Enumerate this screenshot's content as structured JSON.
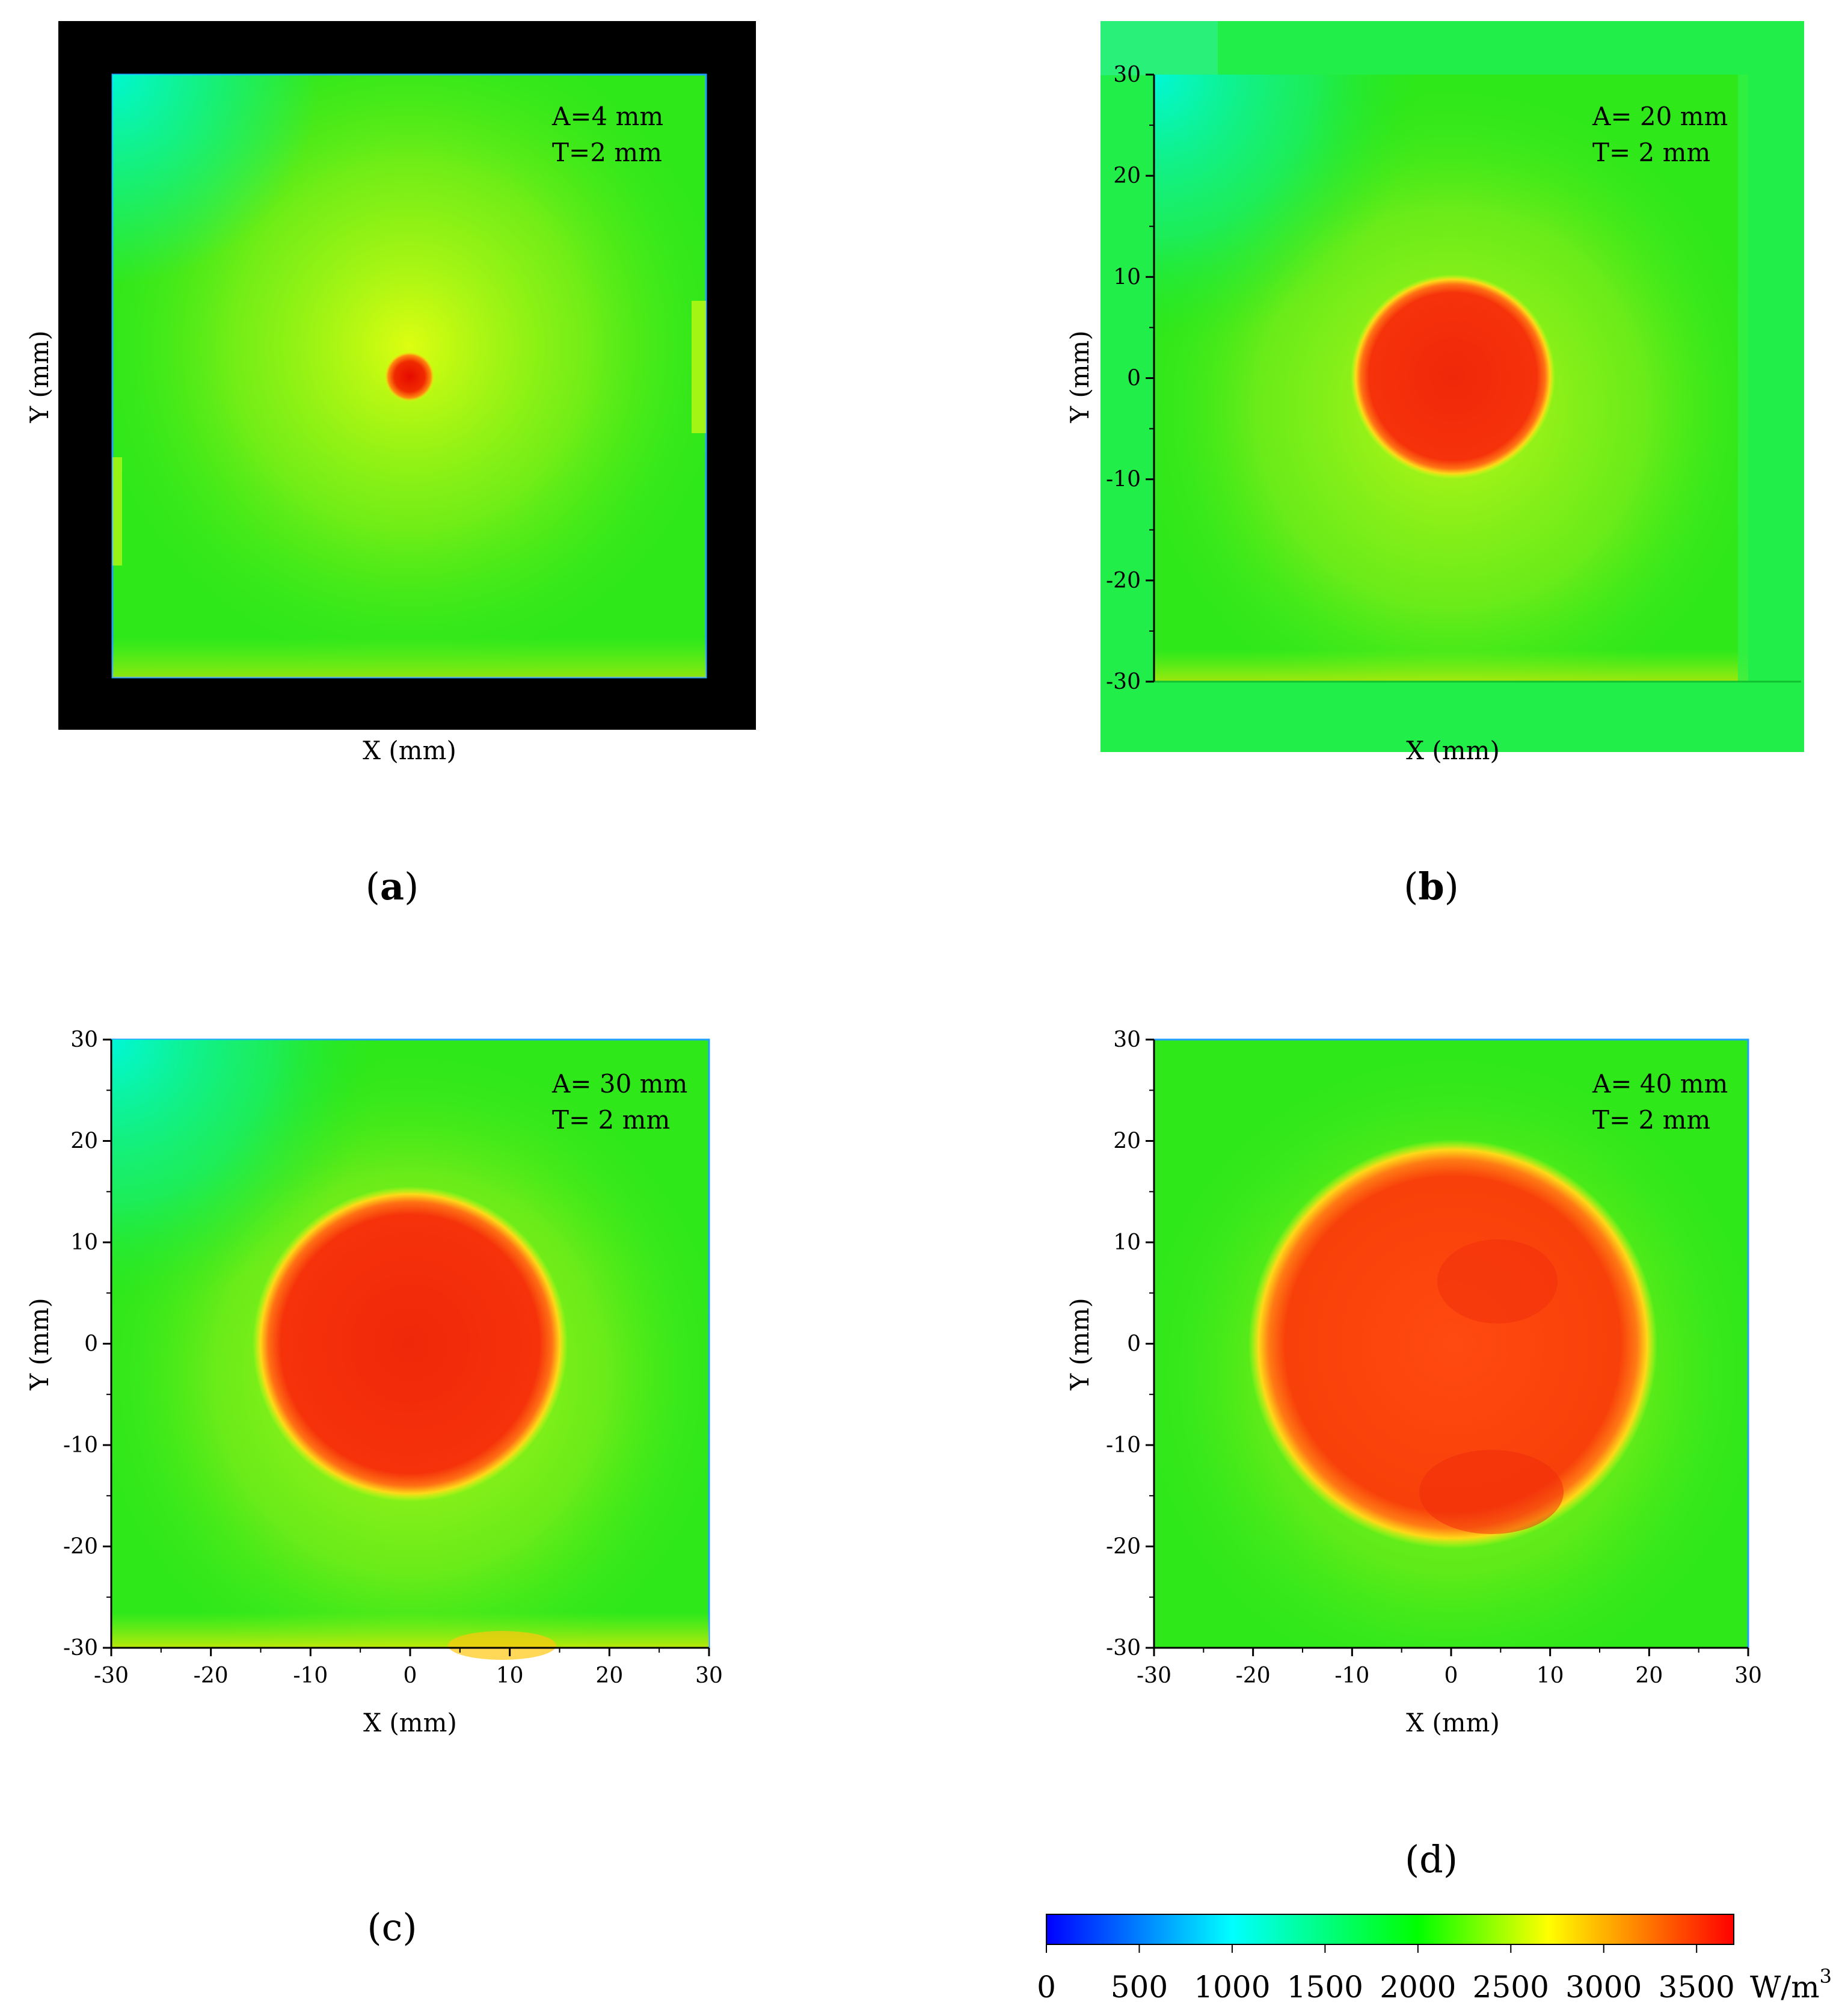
{
  "chart_data": [
    {
      "type": "heatmap",
      "panel": "a",
      "annotation": [
        "A=4 mm",
        "T=2 mm"
      ],
      "xlabel": "X (mm)",
      "ylabel": "Y (mm)",
      "xlim": [
        -30,
        30
      ],
      "ylim": [
        -30,
        30
      ],
      "xticks": [],
      "yticks": [],
      "hotspot_diameter_mm": 4,
      "frame": "black"
    },
    {
      "type": "heatmap",
      "panel": "b",
      "annotation": [
        "A= 20 mm",
        "T= 2 mm"
      ],
      "xlabel": "X (mm)",
      "ylabel": "Y (mm)",
      "xlim": [
        -30,
        30
      ],
      "ylim": [
        -30,
        30
      ],
      "xticks": [],
      "yticks": [
        30,
        20,
        10,
        0,
        -10,
        -20,
        -30
      ],
      "hotspot_diameter_mm": 20,
      "frame": "green"
    },
    {
      "type": "heatmap",
      "panel": "c",
      "annotation": [
        "A= 30 mm",
        "T= 2 mm"
      ],
      "xlabel": "X (mm)",
      "ylabel": "Y (mm)",
      "xlim": [
        -30,
        30
      ],
      "ylim": [
        -30,
        30
      ],
      "xticks": [
        -30,
        -20,
        -10,
        0,
        10,
        20,
        30
      ],
      "yticks": [
        30,
        20,
        10,
        0,
        -10,
        -20,
        -30
      ],
      "hotspot_diameter_mm": 30
    },
    {
      "type": "heatmap",
      "panel": "d",
      "annotation": [
        "A= 40 mm",
        "T= 2 mm"
      ],
      "xlabel": "X (mm)",
      "ylabel": "Y (mm)",
      "xlim": [
        -30,
        30
      ],
      "ylim": [
        -30,
        30
      ],
      "xticks": [
        -30,
        -20,
        -10,
        0,
        10,
        20,
        30
      ],
      "yticks": [
        30,
        20,
        10,
        0,
        -10,
        -20,
        -30
      ],
      "hotspot_diameter_mm": 40
    }
  ],
  "panel_labels": [
    "a",
    "b",
    "c",
    "d"
  ],
  "colorbar": {
    "ticks": [
      "0",
      "500",
      "1000",
      "1500",
      "2000",
      "2500",
      "3000",
      "3500"
    ],
    "unit": "W/m",
    "unit_exponent": "3",
    "range": [
      0,
      3700
    ],
    "stops": [
      {
        "value": 0,
        "color": "#0000ff"
      },
      {
        "value": 1000,
        "color": "#00ffff"
      },
      {
        "value": 2000,
        "color": "#00ff00"
      },
      {
        "value": 2700,
        "color": "#ffff00"
      },
      {
        "value": 3700,
        "color": "#ff0000"
      }
    ]
  },
  "colors": {
    "field_green": "#1fe81a",
    "field_yellowgreen": "#bff21a",
    "hot_red": "#f02a0a",
    "cool_cyan": "#00f8c8"
  }
}
